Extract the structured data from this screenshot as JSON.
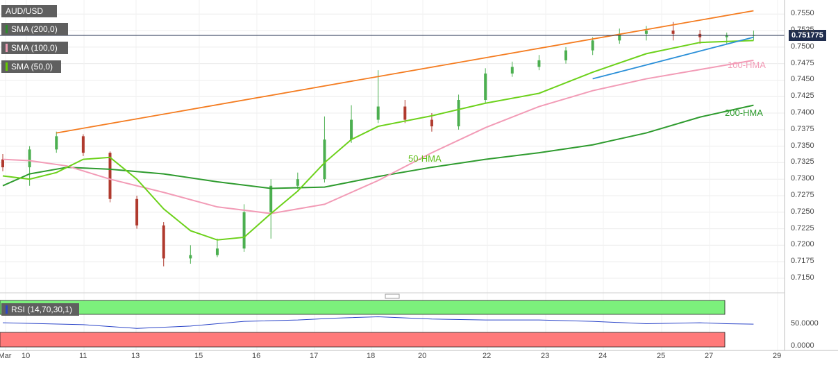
{
  "header": {
    "symbol": "AUD/USD",
    "indicators": [
      {
        "label": "SMA (200,0)",
        "color": "#2c8c2c"
      },
      {
        "label": "SMA (100,0)",
        "color": "#f29bb6"
      },
      {
        "label": "SMA (50,0)",
        "color": "#66cc00"
      }
    ]
  },
  "price_tag": "0.751775",
  "hma_labels": {
    "hma50": "50-HMA",
    "hma100": "100-HMA",
    "hma200": "200-HMA"
  },
  "rsi": {
    "label": "RSI (14,70,30,1)",
    "ticks": [
      "50.0000",
      "0.0000"
    ]
  },
  "colors": {
    "up": "#4caf50",
    "down": "#b03a2e",
    "sma200": "#2e9b2e",
    "sma100": "#f29bb6",
    "sma50": "#6cd11a",
    "resistance": "#f47c20",
    "support": "#2a8fd8",
    "rsi_line": "#2a44c8",
    "rsi_over": "#7cf07c",
    "rsi_under": "#ff7a7a",
    "price_line": "#1f2d4e"
  },
  "chart_data": {
    "type": "line",
    "title": "AUD/USD",
    "y_ticks": [
      "0.7550",
      "0.7525",
      "0.7500",
      "0.7475",
      "0.7450",
      "0.7425",
      "0.7400",
      "0.7375",
      "0.7350",
      "0.7325",
      "0.7300",
      "0.7275",
      "0.7250",
      "0.7225",
      "0.7200",
      "0.7175",
      "0.7150"
    ],
    "x_ticks": [
      "Mar",
      "10",
      "11",
      "13",
      "15",
      "16",
      "17",
      "18",
      "20",
      "22",
      "23",
      "24",
      "25",
      "27",
      "29"
    ],
    "ylim": [
      0.713,
      0.7565
    ],
    "last_price": 0.751775,
    "series": [
      {
        "name": "SMA (200,0)",
        "x": [
          0,
          5,
          12,
          20,
          30,
          40,
          50,
          60,
          70,
          80,
          90,
          100,
          110,
          120,
          130,
          140
        ],
        "y": [
          0.729,
          0.7308,
          0.7318,
          0.7315,
          0.7308,
          0.7296,
          0.7286,
          0.7288,
          0.7304,
          0.7318,
          0.733,
          0.734,
          0.7352,
          0.737,
          0.7394,
          0.7412
        ]
      },
      {
        "name": "SMA (100,0)",
        "x": [
          0,
          5,
          12,
          20,
          30,
          40,
          50,
          60,
          70,
          80,
          90,
          100,
          110,
          120,
          130,
          140
        ],
        "y": [
          0.733,
          0.7328,
          0.732,
          0.73,
          0.728,
          0.7258,
          0.7248,
          0.7262,
          0.7298,
          0.734,
          0.7378,
          0.741,
          0.7434,
          0.7452,
          0.7466,
          0.748
        ]
      },
      {
        "name": "SMA (50,0)",
        "x": [
          0,
          5,
          10,
          15,
          20,
          25,
          30,
          35,
          40,
          45,
          50,
          55,
          60,
          65,
          70,
          80,
          90,
          100,
          110,
          120,
          130,
          140
        ],
        "y": [
          0.7305,
          0.73,
          0.731,
          0.733,
          0.7333,
          0.73,
          0.7255,
          0.7222,
          0.7208,
          0.7212,
          0.7248,
          0.7282,
          0.7325,
          0.736,
          0.738,
          0.7396,
          0.7415,
          0.743,
          0.7462,
          0.749,
          0.7507,
          0.751
        ]
      },
      {
        "name": "Resistance",
        "x": [
          10,
          140
        ],
        "y": [
          0.737,
          0.7555
        ]
      },
      {
        "name": "Support",
        "x": [
          110,
          140
        ],
        "y": [
          0.7452,
          0.7515
        ]
      },
      {
        "name": "RSI (14,70,30,1)",
        "x": [
          0,
          15,
          25,
          35,
          45,
          55,
          62,
          70,
          80,
          90,
          100,
          110,
          120,
          130,
          135,
          140
        ],
        "y": [
          52,
          48,
          40,
          45,
          55,
          58,
          62,
          65,
          60,
          58,
          58,
          55,
          50,
          52,
          50,
          49
        ]
      }
    ],
    "candles": {
      "x": [
        0,
        5,
        10,
        15,
        20,
        25,
        30,
        35,
        40,
        45,
        50,
        55,
        60,
        65,
        70,
        75,
        80,
        85,
        90,
        95,
        100,
        105,
        110,
        115,
        120,
        125,
        130,
        135,
        140
      ],
      "open": [
        0.733,
        0.7318,
        0.7345,
        0.7365,
        0.734,
        0.727,
        0.723,
        0.718,
        0.7185,
        0.7195,
        0.725,
        0.729,
        0.73,
        0.736,
        0.739,
        0.741,
        0.739,
        0.738,
        0.742,
        0.746,
        0.747,
        0.748,
        0.7495,
        0.751,
        0.752,
        0.7525,
        0.752,
        0.7515,
        0.7518
      ],
      "close": [
        0.7318,
        0.7345,
        0.7365,
        0.734,
        0.727,
        0.723,
        0.718,
        0.7185,
        0.7195,
        0.725,
        0.729,
        0.73,
        0.736,
        0.739,
        0.741,
        0.739,
        0.738,
        0.742,
        0.746,
        0.747,
        0.748,
        0.7495,
        0.751,
        0.752,
        0.7525,
        0.752,
        0.7515,
        0.7518,
        0.7518
      ],
      "high": [
        0.7338,
        0.735,
        0.7372,
        0.7368,
        0.7342,
        0.7275,
        0.7235,
        0.72,
        0.721,
        0.7262,
        0.73,
        0.731,
        0.7395,
        0.7412,
        0.7465,
        0.742,
        0.74,
        0.7428,
        0.7468,
        0.7478,
        0.7488,
        0.75,
        0.7515,
        0.7528,
        0.7532,
        0.7538,
        0.7526,
        0.7522,
        0.7525
      ],
      "low": [
        0.7312,
        0.729,
        0.734,
        0.7335,
        0.7265,
        0.7225,
        0.7168,
        0.7172,
        0.7182,
        0.719,
        0.721,
        0.7285,
        0.7295,
        0.7355,
        0.7385,
        0.7385,
        0.7372,
        0.7375,
        0.7415,
        0.7455,
        0.7465,
        0.7475,
        0.7488,
        0.7505,
        0.751,
        0.751,
        0.7505,
        0.7505,
        0.751
      ]
    }
  }
}
